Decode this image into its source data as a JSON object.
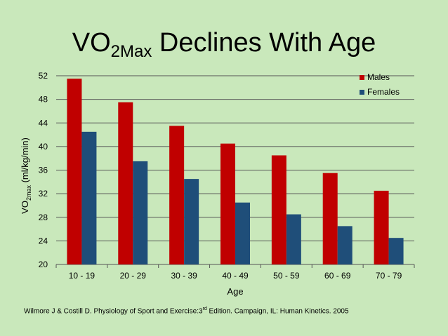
{
  "colors": {
    "background": "#c9e8bb",
    "males": "#c00000",
    "females": "#1f4e79",
    "grid": "#555555"
  },
  "title": {
    "main": "VO",
    "sub": "2Max",
    "rest": " Declines With Age"
  },
  "citation": {
    "prefix": "Wilmore J & Costill D.  Physiology of Sport and Exercise:3",
    "sup": "rd",
    "suffix": " Edition.  Campaign, IL:  Human Kinetics.  2005"
  },
  "chart_data": {
    "type": "bar",
    "title": "VO2Max Declines With Age",
    "xlabel": "Age",
    "ylabel": {
      "main": "VO",
      "sub": "2max",
      "rest": "  (ml/kg/min)"
    },
    "ylim": [
      20,
      52
    ],
    "yticks": [
      "20",
      "24",
      "28",
      "32",
      "36",
      "40",
      "44",
      "48",
      "52"
    ],
    "grid": true,
    "legend_position": "top-right",
    "categories": [
      "10 - 19",
      "20 - 29",
      "30 - 39",
      "40 - 49",
      "50 - 59",
      "60 - 69",
      "70 - 79"
    ],
    "series": [
      {
        "name": "Males",
        "color": "#c00000",
        "values": [
          51.5,
          47.5,
          43.5,
          40.5,
          38.5,
          35.5,
          32.5
        ]
      },
      {
        "name": "Females",
        "color": "#1f4e79",
        "values": [
          42.5,
          37.5,
          34.5,
          30.5,
          28.5,
          26.5,
          24.5
        ]
      }
    ]
  }
}
